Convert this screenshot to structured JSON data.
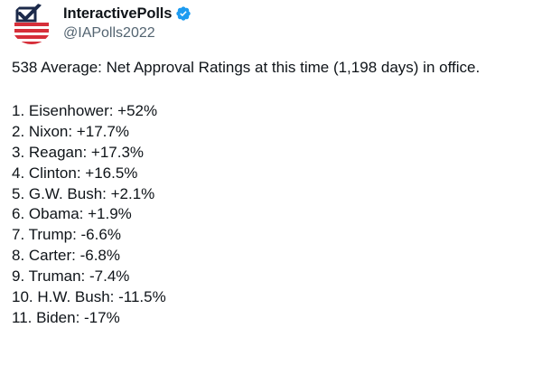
{
  "tweet": {
    "author": {
      "display_name": "InteractivePolls",
      "handle": "@IAPolls2022",
      "avatar_icon": "check-box-flag-icon",
      "verified_icon": "verified-badge-icon",
      "verified_color": "#1d9bf0"
    },
    "text_intro": "538 Average: Net Approval Ratings at this time (1,198 days) in office.",
    "list": [
      "1. Eisenhower: +52%",
      "2. Nixon: +17.7%",
      "3. Reagan: +17.3%",
      "4. Clinton: +16.5%",
      "5. G.W. Bush: +2.1%",
      "6. Obama: +1.9%",
      "7. Trump: -6.6%",
      "8. Carter: -6.8%",
      "9. Truman: -7.4%",
      "10. H.W. Bush: -11.5%",
      "11. Biden: -17%"
    ]
  },
  "colors": {
    "text": "#0f1419",
    "secondary_text": "#536471",
    "avatar_red": "#d62f3a",
    "avatar_navy": "#1c2a4a"
  }
}
